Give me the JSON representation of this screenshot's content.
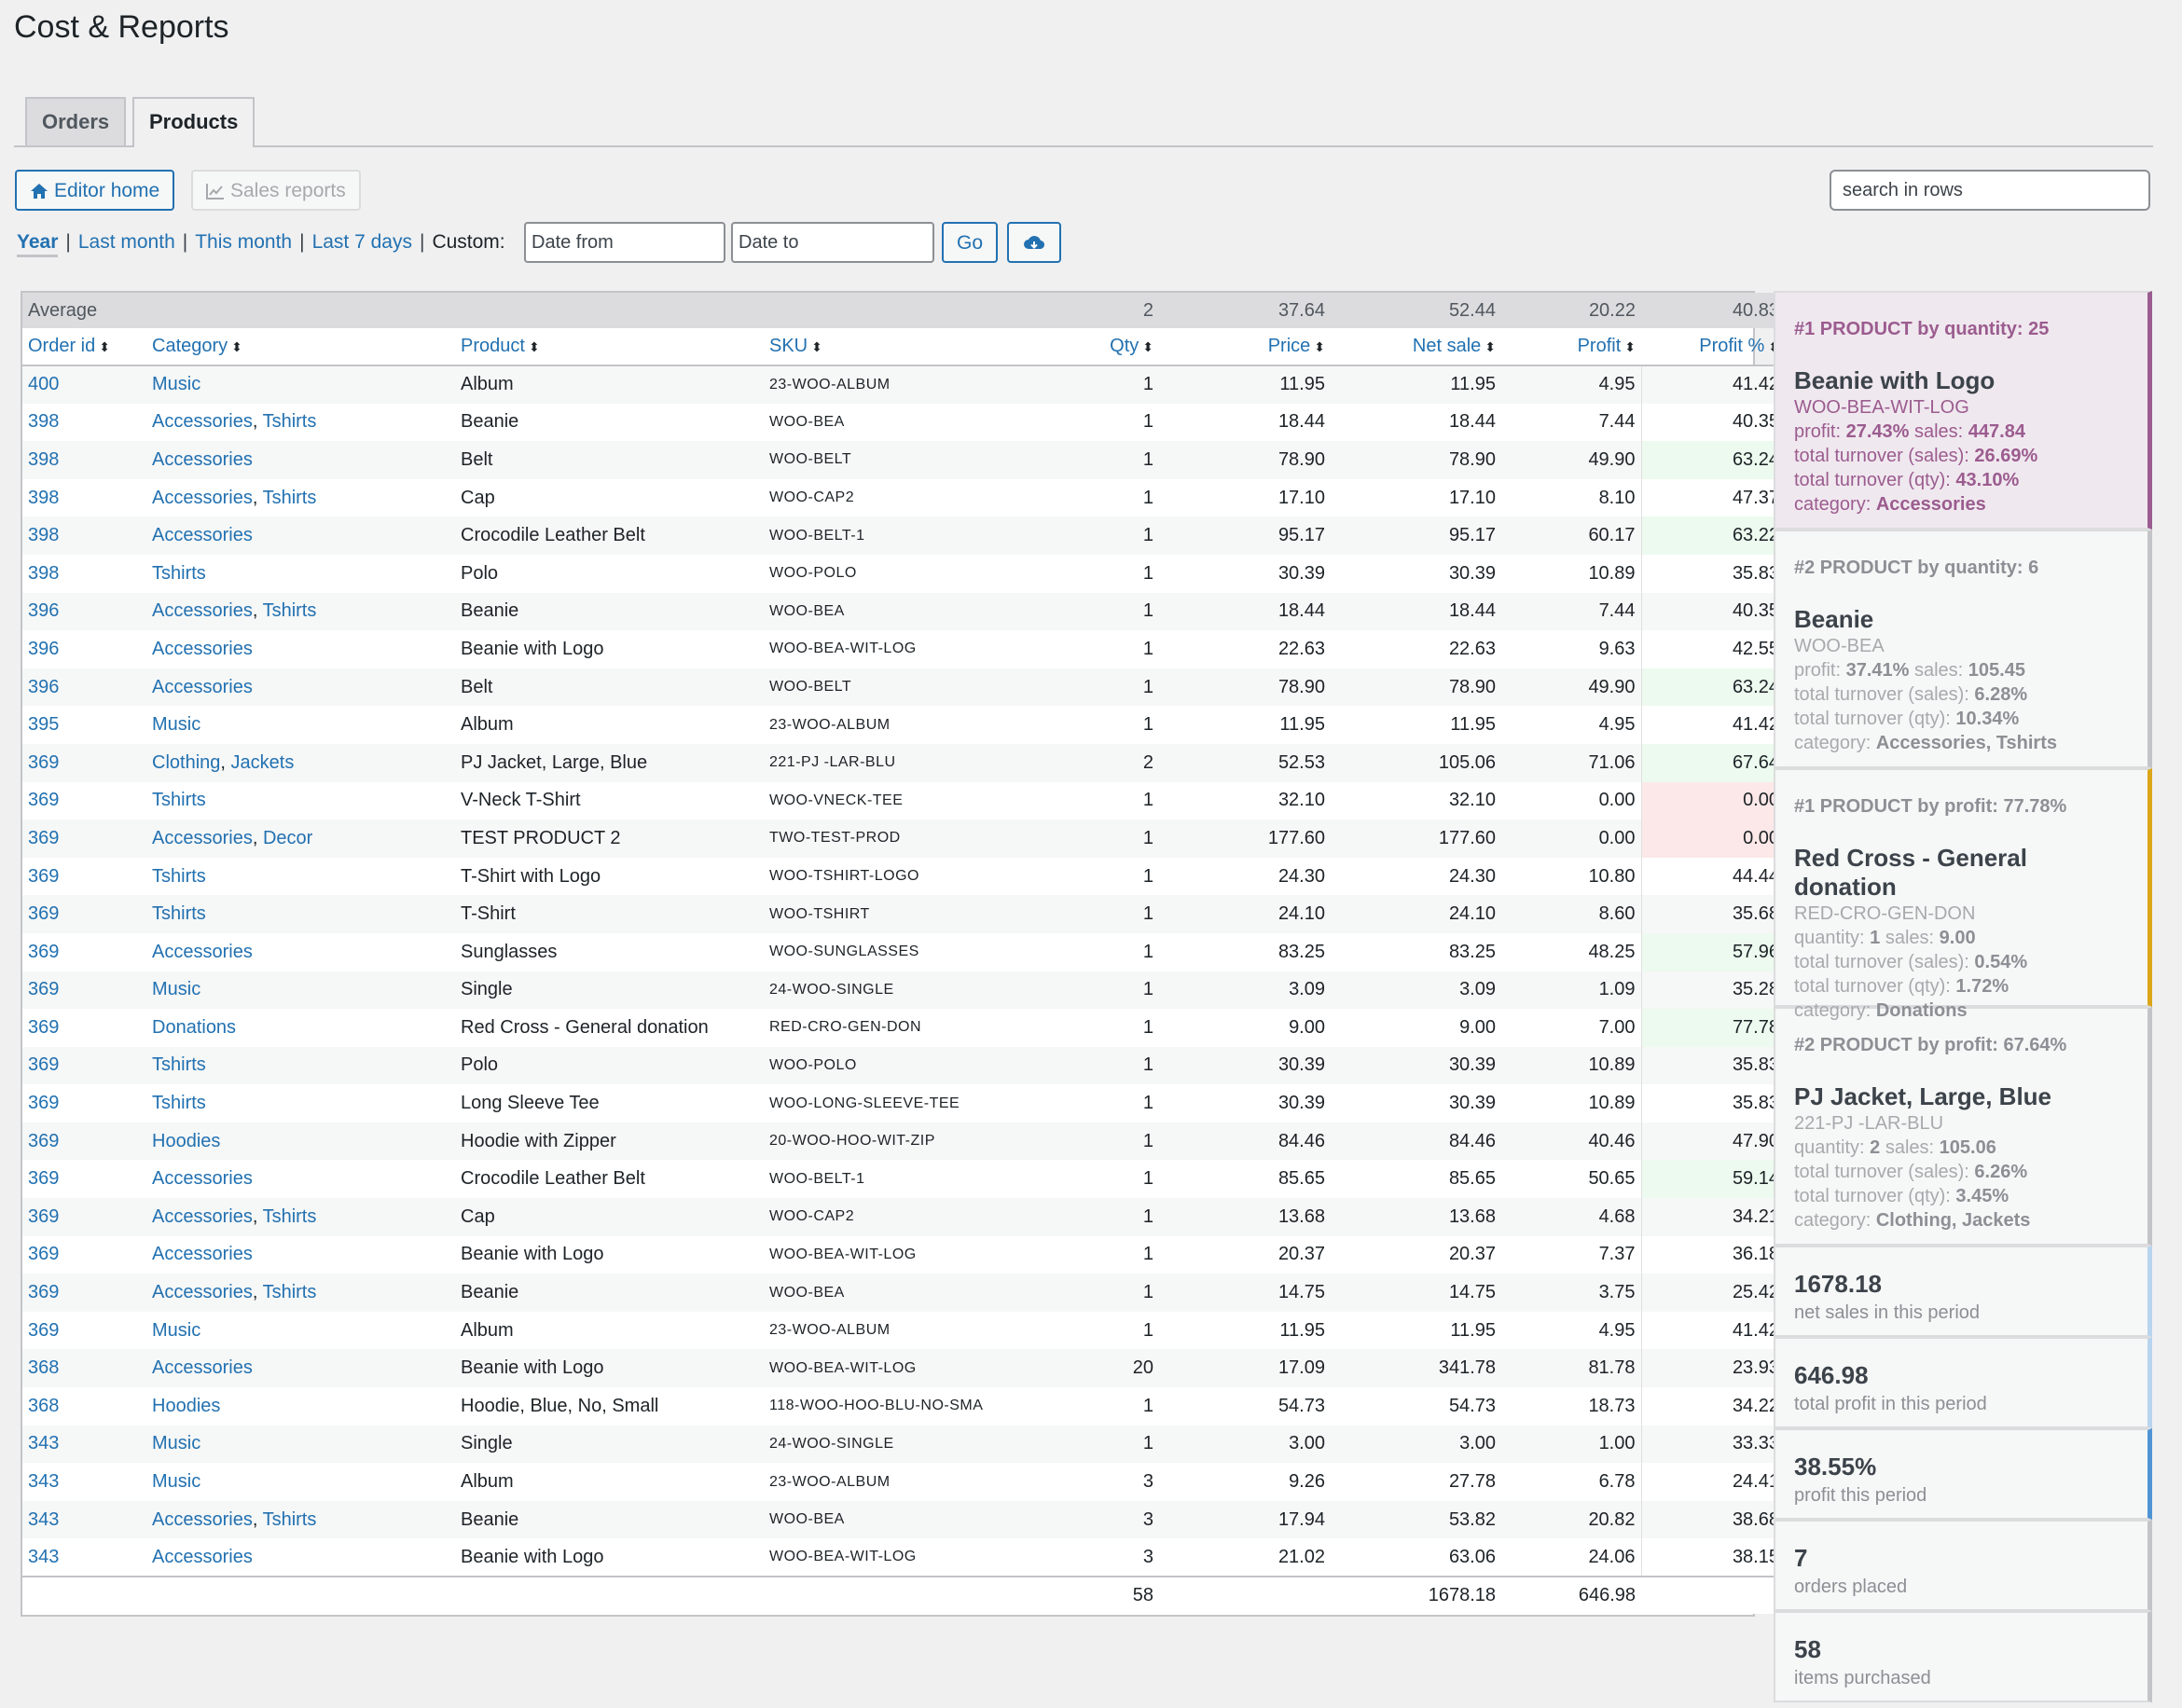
{
  "page_title": "Cost & Reports",
  "tabs": {
    "orders": "Orders",
    "products": "Products"
  },
  "toolbar": {
    "editor_home": "Editor home",
    "sales_reports": "Sales reports",
    "search_placeholder": "search in rows"
  },
  "period": {
    "year": "Year",
    "last_month": "Last month",
    "this_month": "This month",
    "last_7_days": "Last 7 days",
    "custom": "Custom:",
    "date_from_placeholder": "Date from",
    "date_to_placeholder": "Date to",
    "go": "Go"
  },
  "table": {
    "average": {
      "label": "Average",
      "qty": "2",
      "price": "37.64",
      "net_sale": "52.44",
      "profit": "20.22",
      "profit_pct": "40.83"
    },
    "columns": [
      "Order id",
      "Category",
      "Product",
      "SKU",
      "Qty",
      "Price",
      "Net sale",
      "Profit",
      "Profit %"
    ],
    "rows": [
      {
        "order": "400",
        "cats": [
          "Music"
        ],
        "product": "Album",
        "sku": "23-WOO-ALBUM",
        "qty": "1",
        "price": "11.95",
        "net": "11.95",
        "profit": "4.95",
        "pct": "41.42",
        "hl": ""
      },
      {
        "order": "398",
        "cats": [
          "Accessories",
          "Tshirts"
        ],
        "product": "Beanie",
        "sku": "WOO-BEA",
        "qty": "1",
        "price": "18.44",
        "net": "18.44",
        "profit": "7.44",
        "pct": "40.35",
        "hl": ""
      },
      {
        "order": "398",
        "cats": [
          "Accessories"
        ],
        "product": "Belt",
        "sku": "WOO-BELT",
        "qty": "1",
        "price": "78.90",
        "net": "78.90",
        "profit": "49.90",
        "pct": "63.24",
        "hl": "green"
      },
      {
        "order": "398",
        "cats": [
          "Accessories",
          "Tshirts"
        ],
        "product": "Cap",
        "sku": "WOO-CAP2",
        "qty": "1",
        "price": "17.10",
        "net": "17.10",
        "profit": "8.10",
        "pct": "47.37",
        "hl": ""
      },
      {
        "order": "398",
        "cats": [
          "Accessories"
        ],
        "product": "Crocodile Leather Belt",
        "sku": "WOO-BELT-1",
        "qty": "1",
        "price": "95.17",
        "net": "95.17",
        "profit": "60.17",
        "pct": "63.22",
        "hl": "green"
      },
      {
        "order": "398",
        "cats": [
          "Tshirts"
        ],
        "product": "Polo",
        "sku": "WOO-POLO",
        "qty": "1",
        "price": "30.39",
        "net": "30.39",
        "profit": "10.89",
        "pct": "35.83",
        "hl": ""
      },
      {
        "order": "396",
        "cats": [
          "Accessories",
          "Tshirts"
        ],
        "product": "Beanie",
        "sku": "WOO-BEA",
        "qty": "1",
        "price": "18.44",
        "net": "18.44",
        "profit": "7.44",
        "pct": "40.35",
        "hl": ""
      },
      {
        "order": "396",
        "cats": [
          "Accessories"
        ],
        "product": "Beanie with Logo",
        "sku": "WOO-BEA-WIT-LOG",
        "qty": "1",
        "price": "22.63",
        "net": "22.63",
        "profit": "9.63",
        "pct": "42.55",
        "hl": ""
      },
      {
        "order": "396",
        "cats": [
          "Accessories"
        ],
        "product": "Belt",
        "sku": "WOO-BELT",
        "qty": "1",
        "price": "78.90",
        "net": "78.90",
        "profit": "49.90",
        "pct": "63.24",
        "hl": "green"
      },
      {
        "order": "395",
        "cats": [
          "Music"
        ],
        "product": "Album",
        "sku": "23-WOO-ALBUM",
        "qty": "1",
        "price": "11.95",
        "net": "11.95",
        "profit": "4.95",
        "pct": "41.42",
        "hl": ""
      },
      {
        "order": "369",
        "cats": [
          "Clothing",
          "Jackets"
        ],
        "product": "PJ Jacket, Large, Blue",
        "sku": "221-PJ -LAR-BLU",
        "qty": "2",
        "price": "52.53",
        "net": "105.06",
        "profit": "71.06",
        "pct": "67.64",
        "hl": "green"
      },
      {
        "order": "369",
        "cats": [
          "Tshirts"
        ],
        "product": "V-Neck T-Shirt",
        "sku": "WOO-VNECK-TEE",
        "qty": "1",
        "price": "32.10",
        "net": "32.10",
        "profit": "0.00",
        "pct": "0.00",
        "hl": "red"
      },
      {
        "order": "369",
        "cats": [
          "Accessories",
          "Decor"
        ],
        "product": "TEST PRODUCT 2",
        "sku": "TWO-TEST-PROD",
        "qty": "1",
        "price": "177.60",
        "net": "177.60",
        "profit": "0.00",
        "pct": "0.00",
        "hl": "red"
      },
      {
        "order": "369",
        "cats": [
          "Tshirts"
        ],
        "product": "T-Shirt with Logo",
        "sku": "WOO-TSHIRT-LOGO",
        "qty": "1",
        "price": "24.30",
        "net": "24.30",
        "profit": "10.80",
        "pct": "44.44",
        "hl": ""
      },
      {
        "order": "369",
        "cats": [
          "Tshirts"
        ],
        "product": "T-Shirt",
        "sku": "WOO-TSHIRT",
        "qty": "1",
        "price": "24.10",
        "net": "24.10",
        "profit": "8.60",
        "pct": "35.68",
        "hl": ""
      },
      {
        "order": "369",
        "cats": [
          "Accessories"
        ],
        "product": "Sunglasses",
        "sku": "WOO-SUNGLASSES",
        "qty": "1",
        "price": "83.25",
        "net": "83.25",
        "profit": "48.25",
        "pct": "57.96",
        "hl": "green"
      },
      {
        "order": "369",
        "cats": [
          "Music"
        ],
        "product": "Single",
        "sku": "24-WOO-SINGLE",
        "qty": "1",
        "price": "3.09",
        "net": "3.09",
        "profit": "1.09",
        "pct": "35.28",
        "hl": ""
      },
      {
        "order": "369",
        "cats": [
          "Donations"
        ],
        "product": "Red Cross - General donation",
        "sku": "RED-CRO-GEN-DON",
        "qty": "1",
        "price": "9.00",
        "net": "9.00",
        "profit": "7.00",
        "pct": "77.78",
        "hl": "green"
      },
      {
        "order": "369",
        "cats": [
          "Tshirts"
        ],
        "product": "Polo",
        "sku": "WOO-POLO",
        "qty": "1",
        "price": "30.39",
        "net": "30.39",
        "profit": "10.89",
        "pct": "35.83",
        "hl": ""
      },
      {
        "order": "369",
        "cats": [
          "Tshirts"
        ],
        "product": "Long Sleeve Tee",
        "sku": "WOO-LONG-SLEEVE-TEE",
        "qty": "1",
        "price": "30.39",
        "net": "30.39",
        "profit": "10.89",
        "pct": "35.83",
        "hl": ""
      },
      {
        "order": "369",
        "cats": [
          "Hoodies"
        ],
        "product": "Hoodie with Zipper",
        "sku": "20-WOO-HOO-WIT-ZIP",
        "qty": "1",
        "price": "84.46",
        "net": "84.46",
        "profit": "40.46",
        "pct": "47.90",
        "hl": ""
      },
      {
        "order": "369",
        "cats": [
          "Accessories"
        ],
        "product": "Crocodile Leather Belt",
        "sku": "WOO-BELT-1",
        "qty": "1",
        "price": "85.65",
        "net": "85.65",
        "profit": "50.65",
        "pct": "59.14",
        "hl": "green"
      },
      {
        "order": "369",
        "cats": [
          "Accessories",
          "Tshirts"
        ],
        "product": "Cap",
        "sku": "WOO-CAP2",
        "qty": "1",
        "price": "13.68",
        "net": "13.68",
        "profit": "4.68",
        "pct": "34.21",
        "hl": ""
      },
      {
        "order": "369",
        "cats": [
          "Accessories"
        ],
        "product": "Beanie with Logo",
        "sku": "WOO-BEA-WIT-LOG",
        "qty": "1",
        "price": "20.37",
        "net": "20.37",
        "profit": "7.37",
        "pct": "36.18",
        "hl": ""
      },
      {
        "order": "369",
        "cats": [
          "Accessories",
          "Tshirts"
        ],
        "product": "Beanie",
        "sku": "WOO-BEA",
        "qty": "1",
        "price": "14.75",
        "net": "14.75",
        "profit": "3.75",
        "pct": "25.42",
        "hl": ""
      },
      {
        "order": "369",
        "cats": [
          "Music"
        ],
        "product": "Album",
        "sku": "23-WOO-ALBUM",
        "qty": "1",
        "price": "11.95",
        "net": "11.95",
        "profit": "4.95",
        "pct": "41.42",
        "hl": ""
      },
      {
        "order": "368",
        "cats": [
          "Accessories"
        ],
        "product": "Beanie with Logo",
        "sku": "WOO-BEA-WIT-LOG",
        "qty": "20",
        "price": "17.09",
        "net": "341.78",
        "profit": "81.78",
        "pct": "23.93",
        "hl": ""
      },
      {
        "order": "368",
        "cats": [
          "Hoodies"
        ],
        "product": "Hoodie, Blue, No, Small",
        "sku": "118-WOO-HOO-BLU-NO-SMA",
        "qty": "1",
        "price": "54.73",
        "net": "54.73",
        "profit": "18.73",
        "pct": "34.22",
        "hl": ""
      },
      {
        "order": "343",
        "cats": [
          "Music"
        ],
        "product": "Single",
        "sku": "24-WOO-SINGLE",
        "qty": "1",
        "price": "3.00",
        "net": "3.00",
        "profit": "1.00",
        "pct": "33.33",
        "hl": ""
      },
      {
        "order": "343",
        "cats": [
          "Music"
        ],
        "product": "Album",
        "sku": "23-WOO-ALBUM",
        "qty": "3",
        "price": "9.26",
        "net": "27.78",
        "profit": "6.78",
        "pct": "24.41",
        "hl": ""
      },
      {
        "order": "343",
        "cats": [
          "Accessories",
          "Tshirts"
        ],
        "product": "Beanie",
        "sku": "WOO-BEA",
        "qty": "3",
        "price": "17.94",
        "net": "53.82",
        "profit": "20.82",
        "pct": "38.68",
        "hl": ""
      },
      {
        "order": "343",
        "cats": [
          "Accessories"
        ],
        "product": "Beanie with Logo",
        "sku": "WOO-BEA-WIT-LOG",
        "qty": "3",
        "price": "21.02",
        "net": "63.06",
        "profit": "24.06",
        "pct": "38.15",
        "hl": ""
      }
    ],
    "totals": {
      "qty": "58",
      "net_sale": "1678.18",
      "profit": "646.98"
    }
  },
  "side": {
    "top_products": [
      {
        "title": "#1 PRODUCT by quantity: 25",
        "name": "Beanie with Logo",
        "sku": "WOO-BEA-WIT-LOG",
        "line1_k1": "profit:",
        "line1_v1": "27.43%",
        "line1_k2": "sales:",
        "line1_v2": "447.84",
        "turnover_sales": "26.69%",
        "turnover_qty": "43.10%",
        "category": "Accessories",
        "style": "purple"
      },
      {
        "title": "#2 PRODUCT by quantity: 6",
        "name": "Beanie",
        "sku": "WOO-BEA",
        "line1_k1": "profit:",
        "line1_v1": "37.41%",
        "line1_k2": "sales:",
        "line1_v2": "105.45",
        "turnover_sales": "6.28%",
        "turnover_qty": "10.34%",
        "category": "Accessories, Tshirts",
        "style": "grey"
      },
      {
        "title": "#1 PRODUCT by profit: 77.78%",
        "name": "Red Cross - General donation",
        "sku": "RED-CRO-GEN-DON",
        "line1_k1": "quantity:",
        "line1_v1": "1",
        "line1_k2": "sales:",
        "line1_v2": "9.00",
        "turnover_sales": "0.54%",
        "turnover_qty": "1.72%",
        "category": "Donations",
        "style": "orange"
      },
      {
        "title": "#2 PRODUCT by profit: 67.64%",
        "name": "PJ Jacket, Large, Blue",
        "sku": "221-PJ -LAR-BLU",
        "line1_k1": "quantity:",
        "line1_v1": "2",
        "line1_k2": "sales:",
        "line1_v2": "105.06",
        "turnover_sales": "6.26%",
        "turnover_qty": "3.45%",
        "category": "Clothing, Jackets",
        "style": "grey"
      }
    ],
    "labels": {
      "turnover_sales": "total turnover (sales):",
      "turnover_qty": "total turnover (qty):",
      "category": "category:"
    },
    "stats": [
      {
        "value": "1678.18",
        "label": "net sales in this period",
        "style": "lightblue"
      },
      {
        "value": "646.98",
        "label": "total profit in this period",
        "style": "lightblue"
      },
      {
        "value": "38.55%",
        "label": "profit this period",
        "style": "blue"
      },
      {
        "value": "7",
        "label": "orders placed",
        "style": "grey"
      },
      {
        "value": "58",
        "label": "items purchased",
        "style": "grey"
      }
    ]
  },
  "colors": {
    "link": "#2271b1",
    "green_cell": "#edfaef",
    "red_cell": "#fce8e8",
    "purple_accent": "#9b5c8f",
    "orange_accent": "#dba617",
    "blue_accent": "#4f94d4"
  },
  "icons": {
    "editor_home": "home-icon",
    "sales_reports": "chart-icon",
    "export": "cloud-download-icon",
    "sort": "sort-icon"
  }
}
